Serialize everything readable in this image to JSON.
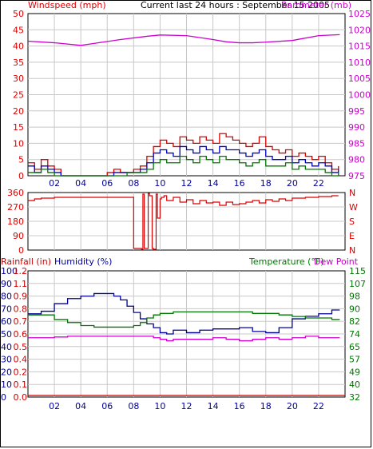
{
  "title": "Current last 24 hours : September 15 2005",
  "colors": {
    "wind": "#dd0000",
    "gust": "#0000cc",
    "wind_green": "#007700",
    "barometer": "#cc00cc",
    "direction": "#dd0000",
    "rain": "#cc0000",
    "humidity": "#000099",
    "temperature": "#007700",
    "dewpoint": "#cc00cc",
    "grid": "#c8c8c8"
  },
  "chart_data": [
    {
      "type": "line",
      "name": "wind_barometer",
      "left_axis_label": "Windspeed (mph)",
      "right_axis_label": "Barometer (mb)",
      "left_ticks": [
        "0",
        "5",
        "10",
        "15",
        "20",
        "25",
        "30",
        "35",
        "40",
        "45",
        "50"
      ],
      "left_range": [
        0,
        50
      ],
      "right_ticks": [
        "975",
        "980",
        "985",
        "990",
        "995",
        "1000",
        "1005",
        "1010",
        "1015",
        "1020",
        "1025"
      ],
      "right_range": [
        975,
        1025
      ],
      "x_ticks": [
        "02",
        "04",
        "06",
        "08",
        "10",
        "12",
        "14",
        "16",
        "18",
        "20",
        "22"
      ],
      "x_range_hours": [
        0,
        24
      ],
      "grid": true,
      "series": [
        {
          "key": "barometer",
          "axis": "right",
          "x": [
            0,
            2,
            4,
            5,
            7,
            9,
            10,
            12,
            14,
            15,
            16,
            17,
            18,
            20,
            22,
            23.6
          ],
          "y": [
            1016.5,
            1016,
            1015.2,
            1015.8,
            1017,
            1018,
            1018.4,
            1018.2,
            1017,
            1016.3,
            1016,
            1016,
            1016.2,
            1016.7,
            1018.2,
            1018.5
          ]
        },
        {
          "key": "wind",
          "axis": "left",
          "x": [
            0,
            0.5,
            1,
            1.5,
            2,
            2.5,
            3,
            3.5,
            4,
            5,
            5.5,
            6,
            6.5,
            7,
            7.5,
            8,
            8.5,
            9,
            9.5,
            10,
            10.5,
            11,
            11.5,
            12,
            12.5,
            13,
            13.5,
            14,
            14.5,
            15,
            15.5,
            16,
            16.5,
            17,
            17.5,
            18,
            18.5,
            19,
            19.5,
            20,
            20.5,
            21,
            21.5,
            22,
            22.5,
            23,
            23.5
          ],
          "y": [
            4,
            2,
            5,
            3,
            2,
            0,
            0,
            0,
            0,
            0,
            0,
            1,
            2,
            1,
            1,
            2,
            3,
            6,
            9,
            11,
            10,
            9,
            12,
            11,
            10,
            12,
            11,
            10,
            13,
            12,
            11,
            10,
            9,
            10,
            12,
            9,
            8,
            7,
            8,
            6,
            7,
            6,
            5,
            6,
            4,
            2,
            3
          ]
        },
        {
          "key": "gust",
          "axis": "left",
          "x": [
            0,
            0.5,
            1,
            1.5,
            2,
            2.5,
            3,
            3.5,
            4,
            5,
            5.5,
            6,
            6.5,
            7,
            7.5,
            8,
            8.5,
            9,
            9.5,
            10,
            10.5,
            11,
            11.5,
            12,
            12.5,
            13,
            13.5,
            14,
            14.5,
            15,
            15.5,
            16,
            16.5,
            17,
            17.5,
            18,
            18.5,
            19,
            19.5,
            20,
            20.5,
            21,
            21.5,
            22,
            22.5,
            23,
            23.5
          ],
          "y": [
            3,
            1,
            3,
            2,
            1,
            0,
            0,
            0,
            0,
            0,
            0,
            0,
            1,
            1,
            1,
            1,
            2,
            4,
            7,
            8,
            7,
            6,
            9,
            8,
            7,
            9,
            8,
            7,
            9,
            8,
            8,
            7,
            6,
            7,
            8,
            6,
            5,
            5,
            6,
            4,
            5,
            4,
            3,
            4,
            3,
            1,
            2
          ]
        },
        {
          "key": "wind_green",
          "axis": "left",
          "x": [
            0,
            0.5,
            1,
            1.5,
            2,
            2.5,
            3,
            3.5,
            4,
            5,
            5.5,
            6,
            6.5,
            7,
            7.5,
            8,
            8.5,
            9,
            9.5,
            10,
            10.5,
            11,
            11.5,
            12,
            12.5,
            13,
            13.5,
            14,
            14.5,
            15,
            15.5,
            16,
            16.5,
            17,
            17.5,
            18,
            18.5,
            19,
            19.5,
            20,
            20.5,
            21,
            21.5,
            22,
            22.5,
            23,
            23.5
          ],
          "y": [
            1,
            1,
            2,
            1,
            0,
            0,
            0,
            0,
            0,
            0,
            0,
            0,
            0,
            0,
            1,
            1,
            1,
            2,
            4,
            5,
            4,
            4,
            6,
            5,
            4,
            6,
            5,
            4,
            6,
            5,
            5,
            4,
            3,
            4,
            5,
            3,
            3,
            3,
            4,
            2,
            3,
            2,
            2,
            2,
            1,
            0,
            1
          ]
        }
      ]
    },
    {
      "type": "line",
      "name": "wind_direction",
      "left_ticks": [
        "0",
        "90",
        "180",
        "270",
        "360"
      ],
      "left_range": [
        0,
        360
      ],
      "right_ticks": [
        "N",
        "E",
        "S",
        "W",
        "N"
      ],
      "x_ticks": [
        "02",
        "04",
        "06",
        "08",
        "10",
        "12",
        "14",
        "16",
        "18",
        "20",
        "22"
      ],
      "x_range_hours": [
        0,
        24
      ],
      "grid": true,
      "series": [
        {
          "key": "direction",
          "x": [
            0,
            0.5,
            1,
            2,
            4,
            6,
            7.9,
            8,
            8.6,
            8.7,
            8.8,
            9.1,
            9.2,
            9.4,
            9.5,
            9.7,
            9.8,
            10,
            10.1,
            10.3,
            10.5,
            11,
            11.5,
            12,
            12.5,
            13,
            13.5,
            14,
            14.5,
            15,
            15.5,
            16,
            16.5,
            17,
            17.5,
            18,
            18.5,
            19,
            19.5,
            20,
            21,
            22,
            23,
            23.5
          ],
          "y": [
            310,
            320,
            325,
            330,
            330,
            330,
            330,
            10,
            5,
            350,
            10,
            355,
            340,
            10,
            5,
            350,
            200,
            320,
            330,
            340,
            310,
            330,
            300,
            315,
            290,
            310,
            295,
            300,
            280,
            300,
            285,
            290,
            300,
            310,
            295,
            315,
            305,
            320,
            310,
            325,
            330,
            335,
            340,
            340
          ]
        }
      ]
    },
    {
      "type": "line",
      "name": "rain_humidity_temperature",
      "rain_label": "Rainfall (in)",
      "humidity_label": "Humidity (%)",
      "temperature_label": "Temperature (°F)",
      "dewpoint_label": "Dew Point",
      "humidity_ticks": [
        "0",
        "10",
        "20",
        "30",
        "40",
        "50",
        "60",
        "70",
        "80",
        "90",
        "100"
      ],
      "humidity_range": [
        0,
        100
      ],
      "rain_ticks": [
        "0.0",
        "0.1",
        "0.2",
        "0.4",
        "0.5",
        "0.6",
        "0.7",
        "0.8",
        "0.9",
        "1.1",
        "1.2"
      ],
      "temp_ticks": [
        "32",
        "40",
        "49",
        "57",
        "65",
        "74",
        "82",
        "90",
        "98",
        "107",
        "115"
      ],
      "temp_range": [
        32,
        115
      ],
      "x_ticks": [
        "02",
        "04",
        "06",
        "08",
        "10",
        "12",
        "14",
        "16",
        "18",
        "20",
        "22"
      ],
      "x_range_hours": [
        0,
        24
      ],
      "grid": true,
      "series": [
        {
          "key": "humidity",
          "axis": "humidity",
          "x": [
            0,
            1,
            2,
            3,
            4,
            5,
            6,
            6.5,
            7,
            7.5,
            8,
            8.5,
            9,
            9.5,
            10,
            10.5,
            11,
            12,
            13,
            14,
            15,
            16,
            16.5,
            17,
            18,
            19,
            20,
            21,
            22,
            23,
            23.6
          ],
          "y": [
            66,
            68,
            74,
            78,
            80,
            82,
            82,
            80,
            77,
            72,
            67,
            62,
            58,
            55,
            51,
            50,
            53,
            51,
            53,
            54,
            54,
            55,
            55,
            52,
            51,
            55,
            62,
            64,
            66,
            69,
            69
          ]
        },
        {
          "key": "temperature",
          "axis": "temp",
          "x": [
            0,
            1,
            2,
            3,
            4,
            5,
            6,
            7,
            7.5,
            8,
            8.5,
            9,
            9.5,
            10,
            11,
            12,
            13,
            14,
            15,
            16,
            17,
            18,
            19,
            20,
            21,
            22,
            23,
            23.6
          ],
          "y": [
            86,
            86,
            83,
            81,
            79,
            78,
            78,
            78,
            78,
            79,
            81,
            84,
            86,
            87,
            88,
            88,
            88,
            88,
            88,
            88,
            87,
            87,
            86,
            85,
            84,
            84,
            83,
            83
          ]
        },
        {
          "key": "dewpoint",
          "axis": "temp",
          "x": [
            0,
            1,
            2,
            3,
            4,
            5,
            6,
            7,
            8,
            9,
            9.5,
            10,
            10.5,
            11,
            12,
            13,
            14,
            15,
            16,
            17,
            18,
            19,
            20,
            21,
            22,
            23,
            23.6
          ],
          "y": [
            71,
            71,
            71.5,
            72,
            72,
            72,
            72,
            72,
            72,
            72,
            71,
            70,
            69,
            70,
            70,
            70,
            71,
            70,
            69,
            70,
            71,
            70,
            71,
            72,
            71,
            71,
            71
          ]
        },
        {
          "key": "rain",
          "axis": "rain",
          "x": [
            0,
            24
          ],
          "y": [
            0,
            0
          ]
        }
      ]
    }
  ]
}
